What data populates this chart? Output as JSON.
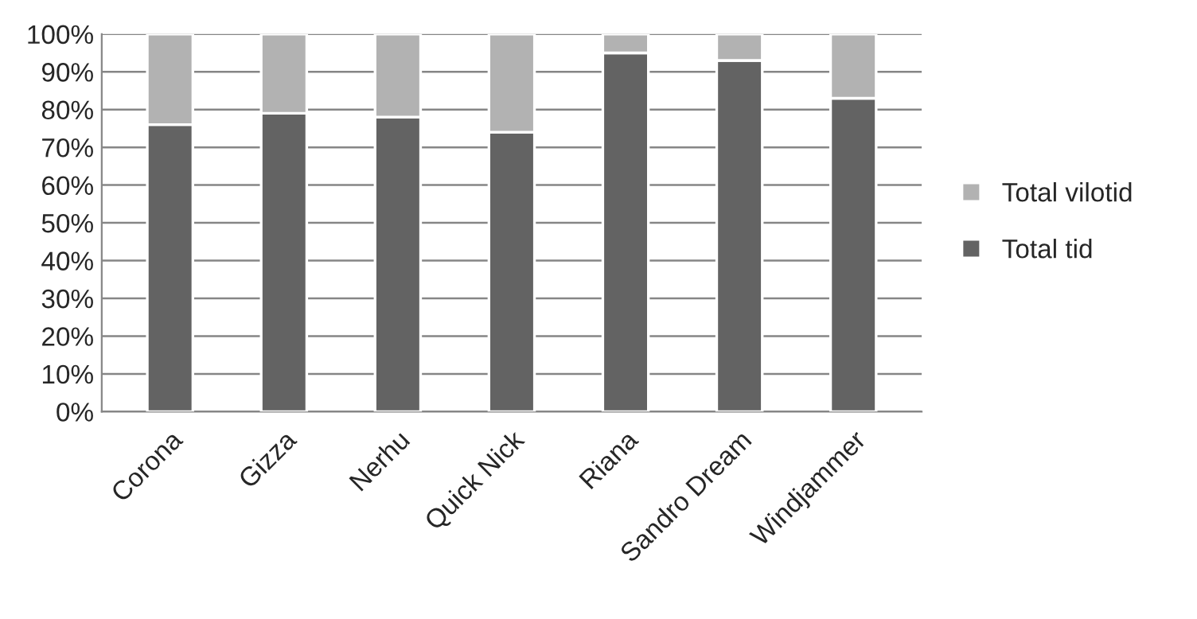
{
  "chart_data": {
    "type": "bar",
    "stacked": true,
    "categories": [
      "Corona",
      "Gizza",
      "Nerhu",
      "Quick Nick",
      "Riana",
      "Sandro Dream",
      "Windjammer"
    ],
    "series": [
      {
        "name": "Total tid",
        "color": "#636363",
        "values": [
          76,
          79,
          78,
          74,
          95,
          93,
          83
        ]
      },
      {
        "name": "Total vilotid",
        "color": "#b2b2b2",
        "values": [
          24,
          21,
          22,
          26,
          5,
          7,
          17
        ]
      }
    ],
    "ylim": [
      0,
      100
    ],
    "yticks": [
      {
        "value": 0,
        "label": "0%"
      },
      {
        "value": 10,
        "label": "10%"
      },
      {
        "value": 20,
        "label": "20%"
      },
      {
        "value": 30,
        "label": "30%"
      },
      {
        "value": 40,
        "label": "40%"
      },
      {
        "value": 50,
        "label": "50%"
      },
      {
        "value": 60,
        "label": "60%"
      },
      {
        "value": 70,
        "label": "70%"
      },
      {
        "value": 80,
        "label": "80%"
      },
      {
        "value": 90,
        "label": "90%"
      },
      {
        "value": 100,
        "label": "100%"
      }
    ],
    "grid": "y",
    "legend": "right"
  }
}
